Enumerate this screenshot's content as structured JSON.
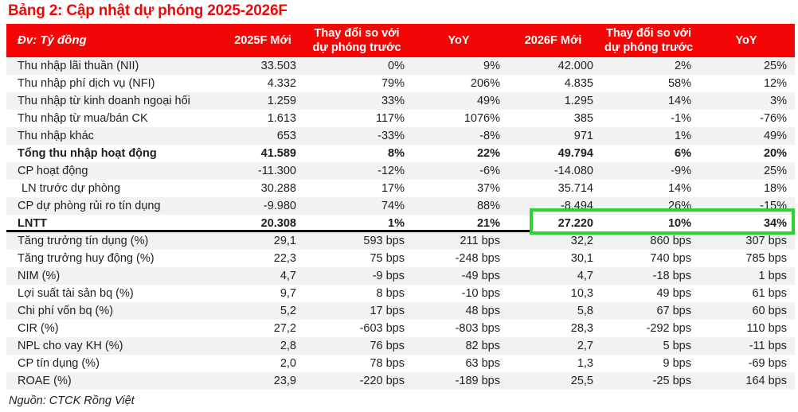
{
  "title": "Bảng 2: Cập nhật dự phóng 2025-2026F",
  "source_note": "Nguồn: CTCK Rồng Việt",
  "colors": {
    "brand_red": "#f40606",
    "highlight_green": "#2fd32f",
    "stripe_gray": "#f2f2f2",
    "divider_black": "#000000"
  },
  "table": {
    "columns": [
      "Đv: Tỷ đồng",
      "2025F Mới",
      "Thay đổi so với dự phóng trước",
      "YoY",
      "2026F Mới",
      "Thay đổi so với dự phóng trước",
      "YoY"
    ],
    "rows": [
      {
        "label": "Thu nhập lãi thuần (NII)",
        "values": [
          "33.503",
          "0%",
          "9%",
          "42.000",
          "2%",
          "25%"
        ],
        "bold": false,
        "indent": false
      },
      {
        "label": "Thu nhập phí dịch vụ (NFI)",
        "values": [
          "4.332",
          "79%",
          "206%",
          "4.835",
          "58%",
          "12%"
        ],
        "bold": false,
        "indent": false
      },
      {
        "label": "Thu nhập từ kinh doanh ngoại hối",
        "values": [
          "1.259",
          "33%",
          "49%",
          "1.295",
          "14%",
          "3%"
        ],
        "bold": false,
        "indent": false
      },
      {
        "label": "Thu nhập từ mua/bán CK",
        "values": [
          "1.613",
          "117%",
          "1076%",
          "385",
          "-1%",
          "-76%"
        ],
        "bold": false,
        "indent": false
      },
      {
        "label": "Thu nhập khác",
        "values": [
          "653",
          "-33%",
          "-8%",
          "971",
          "1%",
          "49%"
        ],
        "bold": false,
        "indent": false
      },
      {
        "label": "Tổng thu nhập hoạt động",
        "values": [
          "41.589",
          "8%",
          "22%",
          "49.794",
          "6%",
          "20%"
        ],
        "bold": true,
        "indent": false
      },
      {
        "label": "CP hoạt động",
        "values": [
          "-11.300",
          "-12%",
          "-6%",
          "-14.080",
          "-9%",
          "25%"
        ],
        "bold": false,
        "indent": false
      },
      {
        "label": "LN trước dự phòng",
        "values": [
          "30.288",
          "17%",
          "37%",
          "35.714",
          "14%",
          "18%"
        ],
        "bold": false,
        "indent": true
      },
      {
        "label": "CP dự phòng rủi ro tín dụng",
        "values": [
          "-9.980",
          "74%",
          "88%",
          "-8.494",
          "26%",
          "-15%"
        ],
        "bold": false,
        "indent": false
      },
      {
        "label": "LNTT",
        "values": [
          "20.308",
          "1%",
          "21%",
          "27.220",
          "10%",
          "34%"
        ],
        "bold": true,
        "indent": false
      },
      {
        "label": "Tăng trưởng tín dụng (%)",
        "values": [
          "29,1",
          "593 bps",
          "211 bps",
          "32,2",
          "860 bps",
          "307 bps"
        ],
        "bold": false,
        "indent": false
      },
      {
        "label": "Tăng trưởng huy động (%)",
        "values": [
          "22,3",
          "75 bps",
          "-248 bps",
          "30,1",
          "740 bps",
          "785 bps"
        ],
        "bold": false,
        "indent": false
      },
      {
        "label": "NIM (%)",
        "values": [
          "4,7",
          "-9 bps",
          "-49 bps",
          "4,7",
          "-18 bps",
          "1 bps"
        ],
        "bold": false,
        "indent": false
      },
      {
        "label": "Lợi suất tài sản bq (%)",
        "values": [
          "9,7",
          "8 bps",
          "-10 bps",
          "10,3",
          "49 bps",
          "61 bps"
        ],
        "bold": false,
        "indent": false
      },
      {
        "label": "Chi phí vốn bq (%)",
        "values": [
          "5,2",
          "17 bps",
          "48 bps",
          "5,8",
          "67 bps",
          "60 bps"
        ],
        "bold": false,
        "indent": false
      },
      {
        "label": "CIR (%)",
        "values": [
          "27,2",
          "-603 bps",
          "-803 bps",
          "28,3",
          "-292 bps",
          "110 bps"
        ],
        "bold": false,
        "indent": false
      },
      {
        "label": "NPL cho vay KH (%)",
        "values": [
          "2,8",
          "76 bps",
          "82 bps",
          "2,7",
          "5 bps",
          "-11 bps"
        ],
        "bold": false,
        "indent": false
      },
      {
        "label": "CP tín dụng (%)",
        "values": [
          "2,0",
          "78 bps",
          "63 bps",
          "1,3",
          "9 bps",
          "-69 bps"
        ],
        "bold": false,
        "indent": false
      },
      {
        "label": "ROAE (%)",
        "values": [
          "23,9",
          "-220 bps",
          "-189 bps",
          "25,5",
          "-25 bps",
          "164 bps"
        ],
        "bold": false,
        "indent": false
      }
    ]
  },
  "highlight": {
    "row_label": "LNTT",
    "highlighted_values": [
      "27.220",
      "10%",
      "34%"
    ],
    "columns_covered": [
      "2026F Mới",
      "Thay đổi so với dự phóng trước",
      "YoY"
    ]
  }
}
